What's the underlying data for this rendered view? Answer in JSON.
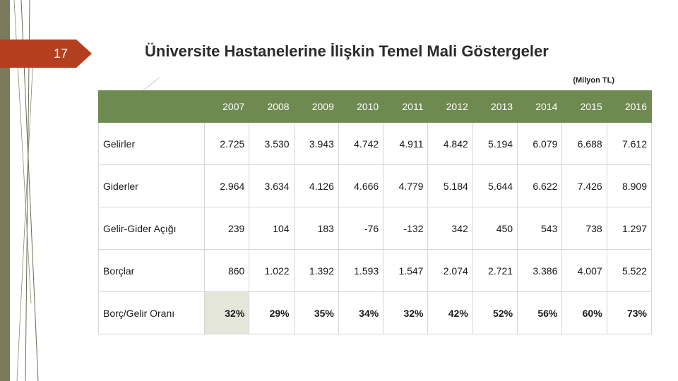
{
  "slide": {
    "number": "17",
    "title": "Üniversite Hastanelerine İlişkin Temel Mali Göstergeler",
    "unit": "(Milyon TL)"
  },
  "table": {
    "header": [
      "",
      "2007",
      "2008",
      "2009",
      "2010",
      "2011",
      "2012",
      "2013",
      "2014",
      "2015",
      "2016"
    ],
    "rows": [
      {
        "label": "Gelirler",
        "values": [
          "2.725",
          "3.530",
          "3.943",
          "4.742",
          "4.911",
          "4.842",
          "5.194",
          "6.079",
          "6.688",
          "7.612"
        ]
      },
      {
        "label": "Giderler",
        "values": [
          "2.964",
          "3.634",
          "4.126",
          "4.666",
          "4.779",
          "5.184",
          "5.644",
          "6.622",
          "7.426",
          "8.909"
        ]
      },
      {
        "label": "Gelir-Gider Açığı",
        "values": [
          "239",
          "104",
          "183",
          "-76",
          "-132",
          "342",
          "450",
          "543",
          "738",
          "1.297"
        ]
      },
      {
        "label": "Borçlar",
        "values": [
          "860",
          "1.022",
          "1.392",
          "1.593",
          "1.547",
          "2.074",
          "2.721",
          "3.386",
          "4.007",
          "5.522"
        ]
      },
      {
        "label": "Borç/Gelir Oranı",
        "values": [
          "32%",
          "29%",
          "35%",
          "34%",
          "32%",
          "42%",
          "52%",
          "56%",
          "60%",
          "73%"
        ]
      }
    ]
  }
}
